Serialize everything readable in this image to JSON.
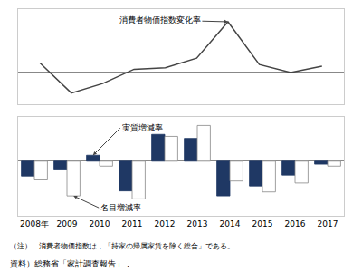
{
  "chart_data": [
    {
      "type": "line",
      "x": [
        2008,
        2009,
        2010,
        2011,
        2012,
        2013,
        2014,
        2015,
        2016,
        2017
      ],
      "xlim": [
        2007.3,
        2017.7
      ],
      "ylim": [
        -2.0,
        4.0
      ],
      "series": [
        {
          "name": "消費者物価指数変化率",
          "color": "#444444",
          "values": [
            0.6,
            -1.3,
            -0.7,
            0.2,
            0.3,
            0.9,
            3.2,
            0.5,
            0.0,
            0.4
          ]
        }
      ],
      "grid": false,
      "tick_labels": false
    },
    {
      "type": "bar",
      "categories": [
        "2008年",
        "2009",
        "2010",
        "2011",
        "2012",
        "2013",
        "2014",
        "2015",
        "2016",
        "2017"
      ],
      "ylim": [
        -5.5,
        4.5
      ],
      "series": [
        {
          "name": "実質増減率",
          "color": "#1f3864",
          "values": [
            -1.5,
            -0.8,
            0.6,
            -3.0,
            2.7,
            2.3,
            -3.5,
            -2.5,
            -1.4,
            -0.3
          ]
        },
        {
          "name": "名目増減率",
          "color": "#ffffff",
          "values": [
            -1.8,
            -3.5,
            -0.5,
            -3.8,
            2.5,
            3.6,
            -2.0,
            -3.1,
            -2.2,
            -0.5
          ]
        }
      ],
      "grid": false,
      "tick_labels": "x",
      "annotations": [
        "（注）　消費者物価指数は，「持家の帰属家賃を除く総合」である。",
        "資料）総務省「家計調査報告」．"
      ]
    }
  ]
}
